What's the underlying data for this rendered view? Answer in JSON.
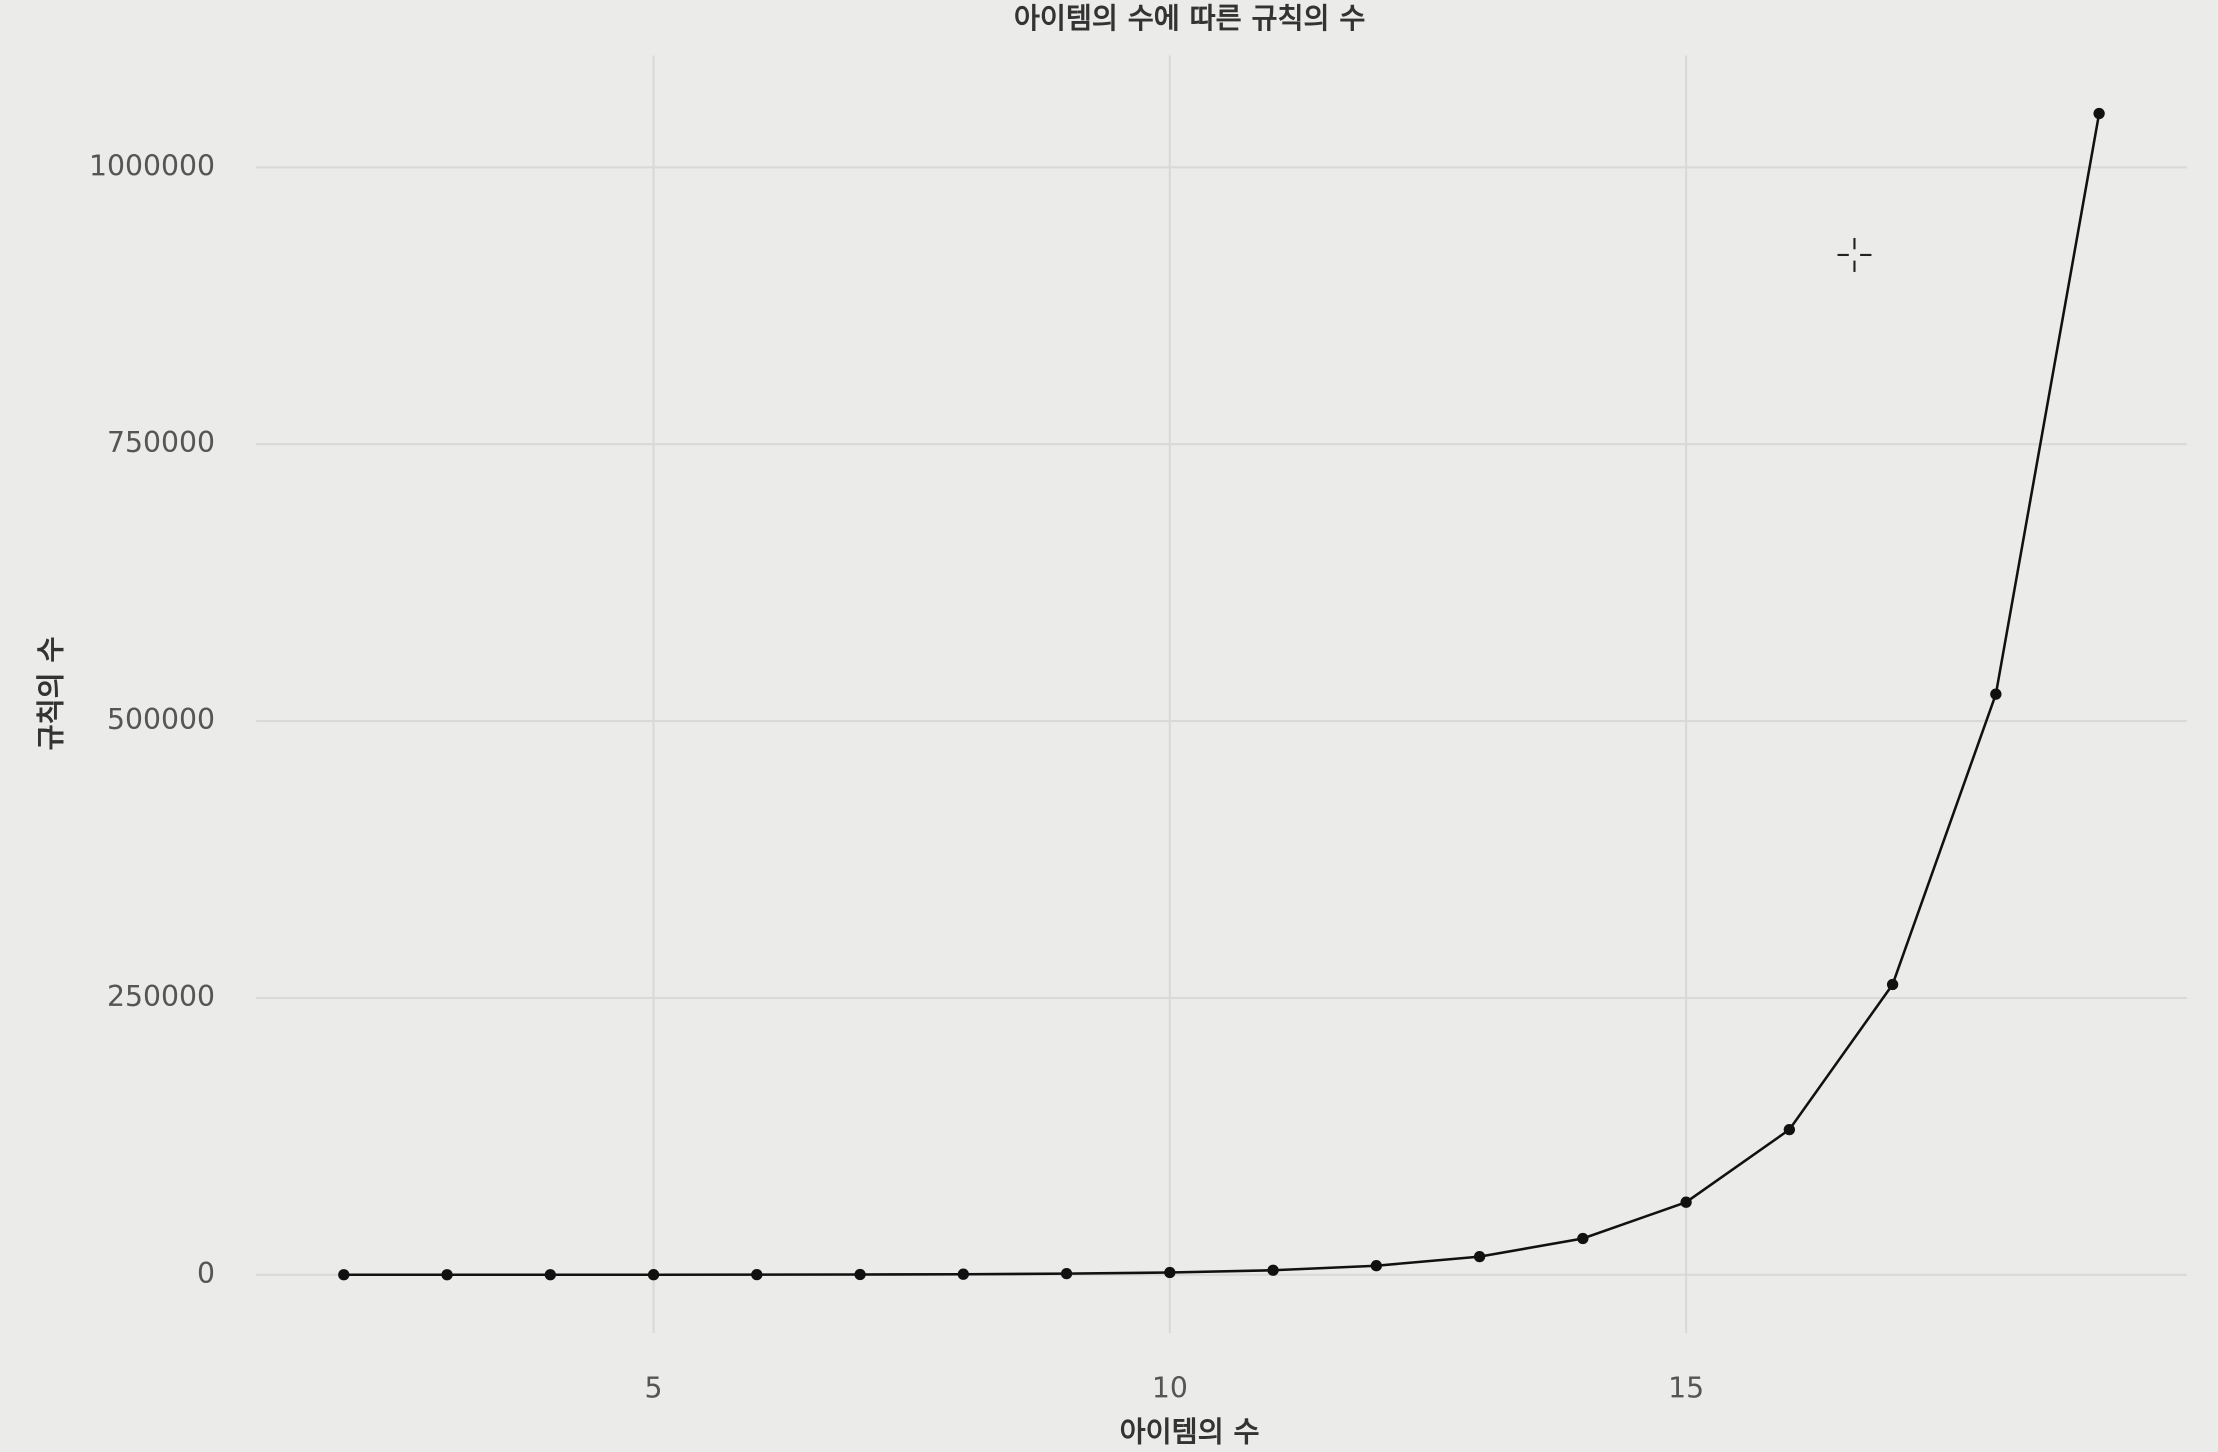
{
  "chart_data": {
    "type": "line",
    "title": "아이템의 수에 따른 규칙의 수",
    "x_label": "아이템의 수",
    "y_label": "규칙의 수",
    "x": [
      2,
      3,
      4,
      5,
      6,
      7,
      8,
      9,
      10,
      11,
      12,
      13,
      14,
      15,
      16,
      17,
      18,
      19
    ],
    "series": [
      {
        "name": "규칙의 수",
        "color": "#111111",
        "values": [
          8,
          16,
          32,
          64,
          128,
          256,
          512,
          1024,
          2048,
          4096,
          8192,
          16384,
          32768,
          65536,
          131072,
          262144,
          524288,
          1048576
        ]
      }
    ],
    "xlim": [
      1.15,
      19.85
    ],
    "xticks": [
      5,
      10,
      15
    ],
    "ylim": [
      -52421,
      1100996
    ],
    "yticks": [
      0,
      250000,
      500000,
      750000,
      1000000
    ],
    "grid": true,
    "markers": true
  }
}
